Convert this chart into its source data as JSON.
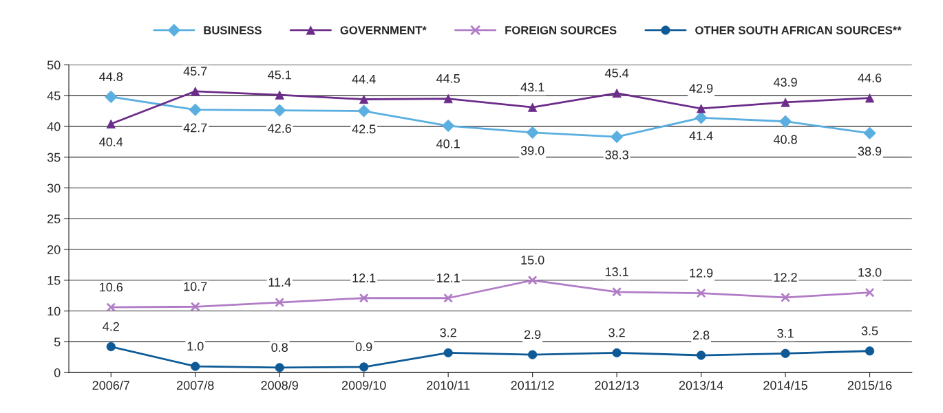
{
  "chart_data": {
    "type": "line",
    "categories": [
      "2006/7",
      "2007/8",
      "2008/9",
      "2009/10",
      "2010/11",
      "2011/12",
      "2012/13",
      "2013/14",
      "2014/15",
      "2015/16"
    ],
    "series": [
      {
        "name": "BUSINESS",
        "color": "#5aaee0",
        "marker": "diamond",
        "values": [
          44.8,
          42.7,
          42.6,
          42.5,
          40.1,
          39.0,
          38.3,
          41.4,
          40.8,
          38.9
        ],
        "value_labels": [
          "44.8",
          "42.7",
          "42.6",
          "42.5",
          "40.1",
          "39.0",
          "38.3",
          "41.4",
          "40.8",
          "38.9"
        ]
      },
      {
        "name": "GOVERNMENT*",
        "color": "#6b2c8a",
        "marker": "triangle",
        "values": [
          40.4,
          45.7,
          45.1,
          44.4,
          44.5,
          43.1,
          45.4,
          42.9,
          43.9,
          44.6
        ],
        "value_labels": [
          "40.4",
          "45.7",
          "45.1",
          "44.4",
          "44.5",
          "43.1",
          "45.4",
          "42.9",
          "43.9",
          "44.6"
        ]
      },
      {
        "name": "FOREIGN SOURCES",
        "color": "#b07cc6",
        "marker": "cross",
        "values": [
          10.6,
          10.7,
          11.4,
          12.1,
          12.1,
          15.0,
          13.1,
          12.9,
          12.2,
          13.0
        ],
        "value_labels": [
          "10.6",
          "10.7",
          "11.4",
          "12.1",
          "12.1",
          "15.0",
          "13.1",
          "12.9",
          "12.2",
          "13.0"
        ]
      },
      {
        "name": "OTHER SOUTH AFRICAN SOURCES**",
        "color": "#0d5a96",
        "marker": "circle",
        "values": [
          4.2,
          1.0,
          0.8,
          0.9,
          3.2,
          2.9,
          3.2,
          2.8,
          3.1,
          3.5
        ],
        "value_labels": [
          "4.2",
          "1.0",
          "0.8",
          "0.9",
          "3.2",
          "2.9",
          "3.2",
          "2.8",
          "3.1",
          "3.5"
        ]
      }
    ],
    "ylim": [
      0,
      50
    ],
    "yticks": [
      0,
      5,
      10,
      15,
      20,
      25,
      30,
      35,
      40,
      45,
      50
    ],
    "grid": "y",
    "legend": "top right",
    "line_style": "solid"
  }
}
